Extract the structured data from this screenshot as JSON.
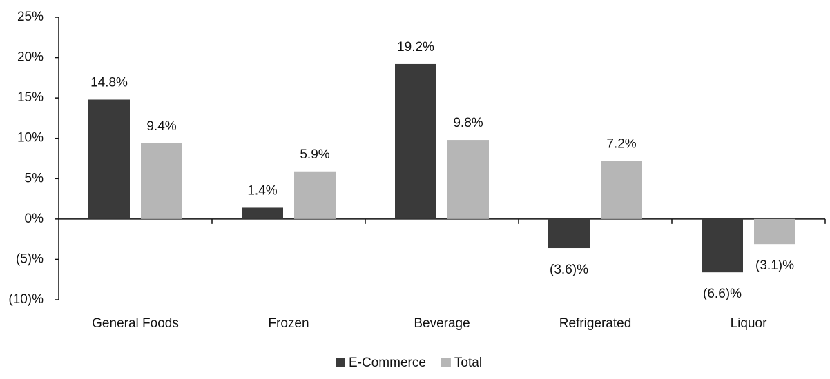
{
  "chart_data": {
    "type": "bar",
    "categories": [
      "General Foods",
      "Frozen",
      "Beverage",
      "Refrigerated",
      "Liquor"
    ],
    "series": [
      {
        "name": "E-Commerce",
        "color": "#3a3a3a",
        "values": [
          14.8,
          1.4,
          19.2,
          -3.6,
          -6.6
        ],
        "value_labels": [
          "14.8%",
          "1.4%",
          "19.2%",
          "(3.6)%",
          "(6.6)%"
        ]
      },
      {
        "name": "Total",
        "color": "#b6b6b6",
        "values": [
          9.4,
          5.9,
          9.8,
          7.2,
          -3.1
        ],
        "value_labels": [
          "9.4%",
          "5.9%",
          "9.8%",
          "7.2%",
          "(3.1)%"
        ]
      }
    ],
    "ylim": [
      -10,
      25
    ],
    "yticks": [
      {
        "value": -10,
        "label": "(10)%"
      },
      {
        "value": -5,
        "label": "(5)%"
      },
      {
        "value": 0,
        "label": "0%"
      },
      {
        "value": 5,
        "label": "5%"
      },
      {
        "value": 10,
        "label": "10%"
      },
      {
        "value": 15,
        "label": "15%"
      },
      {
        "value": 20,
        "label": "20%"
      },
      {
        "value": 25,
        "label": "25%"
      }
    ],
    "grid": false,
    "legend": "bottom"
  }
}
